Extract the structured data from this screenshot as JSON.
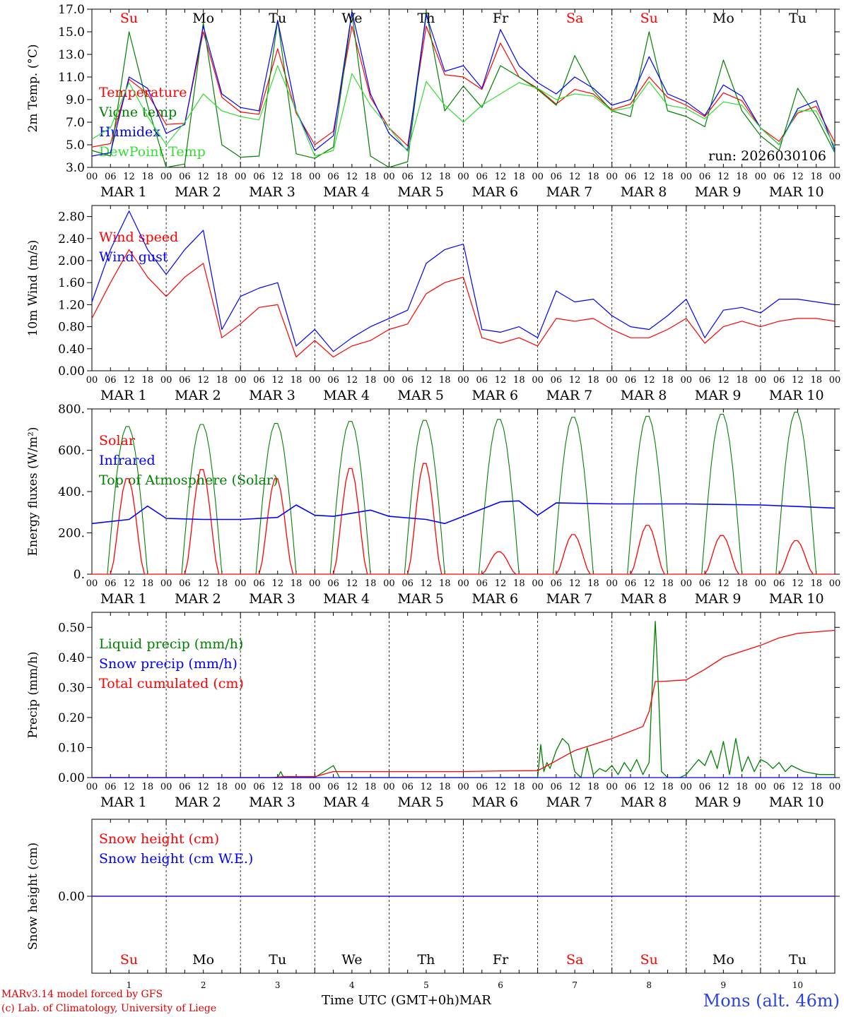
{
  "footer": {
    "model_line": "MARv3.14 model forced by GFS",
    "credit_line": "(c) Lab. of Climatology, University of Liege",
    "time_label": "Time UTC (GMT+0h)",
    "month": "MAR",
    "station": "Mons (alt. 46m)"
  },
  "days": {
    "names": [
      "Su",
      "Mo",
      "Tu",
      "We",
      "Th",
      "Fr",
      "Sa",
      "Su",
      "Mo",
      "Tu"
    ],
    "weekend_flags": [
      true,
      false,
      false,
      false,
      false,
      false,
      true,
      true,
      false,
      false
    ],
    "dates": [
      "MAR  1",
      "MAR  2",
      "MAR  3",
      "MAR  4",
      "MAR  5",
      "MAR  6",
      "MAR  7",
      "MAR  8",
      "MAR  9",
      "MAR 10"
    ],
    "bottom_numbers": [
      "1",
      "2",
      "3",
      "4",
      "5",
      "6",
      "7",
      "8",
      "9",
      "10"
    ],
    "hour_ticks": [
      "00",
      "06",
      "12",
      "18"
    ],
    "final_tick": "00"
  },
  "colors": {
    "red": "#ff0000",
    "green": "#008000",
    "blue": "#0000ff",
    "lightgreen": "#33dd33",
    "weekend": "#ff0000",
    "title_blue": "#2b43e0"
  },
  "chart_data": [
    {
      "type": "line",
      "ylabel": "2m Temp. (°C)",
      "ylim": [
        3.0,
        17.0
      ],
      "yticks": [
        "3.0",
        "5.0",
        "7.0",
        "9.0",
        "11.0",
        "13.0",
        "15.0",
        "17.0"
      ],
      "annotation": "run: 2026030106",
      "x_hours": [
        0,
        6,
        12,
        18,
        24,
        30,
        36,
        42,
        48,
        54,
        60,
        66,
        72,
        78,
        84,
        90,
        96,
        102,
        108,
        114,
        120,
        126,
        132,
        138,
        144,
        150,
        156,
        162,
        168,
        174,
        180,
        186,
        192,
        198,
        204,
        210,
        216,
        222,
        228,
        234,
        240
      ],
      "series": [
        {
          "name": "Temperature",
          "color": "red",
          "values": [
            4.8,
            5.1,
            10.8,
            9.5,
            6.8,
            6.9,
            15.0,
            9.2,
            7.9,
            7.7,
            13.5,
            7.8,
            5.0,
            6.2,
            15.5,
            9.2,
            6.5,
            4.9,
            15.5,
            11.2,
            11.0,
            9.9,
            14.0,
            11.0,
            10.0,
            8.6,
            9.9,
            9.5,
            8.1,
            8.6,
            11.0,
            9.2,
            8.5,
            7.5,
            9.6,
            8.9,
            6.5,
            5.3,
            7.8,
            8.4,
            5.2
          ]
        },
        {
          "name": "Vigne temp",
          "color": "green",
          "values": [
            4.5,
            4.0,
            15.0,
            8.5,
            3.0,
            3.3,
            15.8,
            5.0,
            3.9,
            4.0,
            16.0,
            4.2,
            3.8,
            4.8,
            16.7,
            4.0,
            3.0,
            3.5,
            16.8,
            8.0,
            10.2,
            8.3,
            12.0,
            11.0,
            9.9,
            8.5,
            12.9,
            9.8,
            8.0,
            7.5,
            15.0,
            8.0,
            7.5,
            6.6,
            12.5,
            8.0,
            5.8,
            4.5,
            10.0,
            7.5,
            4.3
          ]
        },
        {
          "name": "Humidex",
          "color": "blue",
          "values": [
            4.0,
            4.3,
            11.0,
            10.0,
            6.0,
            6.8,
            15.5,
            9.5,
            8.3,
            8.0,
            16.0,
            8.0,
            4.5,
            5.8,
            16.8,
            9.5,
            6.0,
            4.5,
            16.5,
            11.5,
            12.0,
            10.0,
            15.2,
            12.0,
            10.5,
            9.5,
            11.0,
            10.0,
            8.5,
            9.0,
            12.8,
            9.5,
            8.8,
            7.6,
            10.3,
            9.3,
            6.5,
            5.0,
            8.2,
            8.9,
            4.5
          ]
        },
        {
          "name": "DewPoint Temp",
          "color": "lightgreen",
          "values": [
            5.5,
            6.5,
            10.5,
            7.5,
            5.0,
            7.0,
            9.5,
            8.0,
            7.5,
            7.2,
            12.0,
            8.0,
            4.0,
            4.5,
            11.3,
            8.5,
            6.5,
            4.4,
            10.6,
            8.5,
            7.0,
            8.5,
            9.5,
            10.5,
            10.0,
            9.0,
            9.5,
            9.3,
            8.0,
            8.3,
            10.6,
            8.5,
            8.2,
            7.3,
            8.8,
            8.5,
            6.5,
            5.0,
            8.0,
            8.0,
            4.8
          ]
        }
      ]
    },
    {
      "type": "line",
      "ylabel": "10m Wind (m/s)",
      "ylim": [
        0.0,
        3.0
      ],
      "yticks": [
        "0.00",
        "0.40",
        "0.80",
        "1.20",
        "1.60",
        "2.00",
        "2.40",
        "2.80"
      ],
      "x_hours": [
        0,
        6,
        12,
        18,
        24,
        30,
        36,
        42,
        48,
        54,
        60,
        66,
        72,
        78,
        84,
        90,
        96,
        102,
        108,
        114,
        120,
        126,
        132,
        138,
        144,
        150,
        156,
        162,
        168,
        174,
        180,
        186,
        192,
        198,
        204,
        210,
        216,
        222,
        228,
        234,
        240
      ],
      "series": [
        {
          "name": "Wind speed",
          "color": "red",
          "values": [
            0.95,
            1.6,
            2.2,
            1.7,
            1.35,
            1.7,
            1.95,
            0.6,
            0.85,
            1.15,
            1.2,
            0.25,
            0.55,
            0.25,
            0.45,
            0.55,
            0.75,
            0.85,
            1.4,
            1.6,
            1.7,
            0.6,
            0.5,
            0.6,
            0.45,
            0.95,
            0.9,
            0.95,
            0.75,
            0.6,
            0.6,
            0.75,
            0.95,
            0.5,
            0.8,
            0.9,
            0.8,
            0.9,
            0.95,
            0.95,
            0.9
          ]
        },
        {
          "name": "Wind gust",
          "color": "blue",
          "values": [
            1.25,
            2.2,
            2.9,
            2.2,
            1.75,
            2.2,
            2.55,
            0.75,
            1.35,
            1.5,
            1.6,
            0.45,
            0.75,
            0.35,
            0.6,
            0.8,
            0.95,
            1.1,
            1.95,
            2.2,
            2.3,
            0.75,
            0.7,
            0.8,
            0.6,
            1.45,
            1.25,
            1.3,
            1.0,
            0.8,
            0.75,
            1.0,
            1.3,
            0.6,
            1.1,
            1.15,
            1.05,
            1.3,
            1.3,
            1.25,
            1.2
          ]
        }
      ]
    },
    {
      "type": "line",
      "ylabel": "Energy fluxes (W/m²)",
      "ylim": [
        0,
        800
      ],
      "yticks": [
        "0.",
        "200.",
        "400.",
        "600.",
        "800."
      ],
      "toa_peaks": [
        720,
        730,
        735,
        745,
        750,
        755,
        765,
        770,
        780,
        790
      ],
      "solar_peaks": [
        470,
        515,
        470,
        520,
        545,
        110,
        195,
        240,
        190,
        165
      ],
      "infrared": {
        "x_hours": [
          0,
          12,
          18,
          24,
          36,
          48,
          60,
          66,
          72,
          78,
          90,
          96,
          108,
          114,
          120,
          132,
          138,
          144,
          150,
          168,
          192,
          216,
          240
        ],
        "values": [
          245,
          265,
          330,
          270,
          265,
          265,
          275,
          335,
          285,
          280,
          310,
          280,
          265,
          245,
          280,
          350,
          355,
          285,
          345,
          340,
          340,
          335,
          320
        ]
      },
      "series": [
        {
          "name": "Solar",
          "color": "red"
        },
        {
          "name": "Infrared",
          "color": "blue"
        },
        {
          "name": "Top of Atmosphere (Solar)",
          "color": "green"
        }
      ]
    },
    {
      "type": "line",
      "ylabel": "Precip (mm/h)",
      "ylim": [
        0.0,
        0.55
      ],
      "yticks": [
        "0.00",
        "0.10",
        "0.20",
        "0.30",
        "0.40",
        "0.50"
      ],
      "series": [
        {
          "name": "Liquid precip (mm/h)",
          "color": "green",
          "x_hours": [
            0,
            60,
            61,
            62,
            72,
            78,
            79,
            80,
            84,
            144,
            145,
            146,
            147,
            148,
            150,
            152,
            154,
            156,
            158,
            160,
            162,
            164,
            166,
            168,
            170,
            172,
            174,
            176,
            178,
            180,
            181,
            182,
            183,
            184,
            186,
            190,
            192,
            196,
            198,
            200,
            202,
            204,
            206,
            208,
            210,
            212,
            214,
            216,
            218,
            220,
            222,
            224,
            226,
            230,
            235,
            240
          ],
          "values": [
            0,
            0,
            0.02,
            0,
            0,
            0.04,
            0.02,
            0,
            0,
            0,
            0.11,
            0.02,
            0.05,
            0.03,
            0.09,
            0.13,
            0.11,
            0.02,
            0,
            0.1,
            0.01,
            0.03,
            0.02,
            0.04,
            0.01,
            0.05,
            0.02,
            0.06,
            0.01,
            0.05,
            0.3,
            0.52,
            0.3,
            0.02,
            0,
            0,
            0.01,
            0.06,
            0.04,
            0.09,
            0.03,
            0.12,
            0.01,
            0.13,
            0.02,
            0.07,
            0.02,
            0.06,
            0.05,
            0.03,
            0.05,
            0.02,
            0.04,
            0.02,
            0.01,
            0.01
          ]
        },
        {
          "name": "Snow precip (mm/h)",
          "color": "blue",
          "x_hours": [
            0,
            240
          ],
          "values": [
            0,
            0
          ]
        },
        {
          "name": "Total cumulated (cm)",
          "color": "red",
          "x_hours": [
            0,
            58,
            62,
            72,
            78,
            84,
            96,
            120,
            132,
            144,
            148,
            156,
            168,
            178,
            180,
            182,
            184,
            192,
            198,
            204,
            210,
            216,
            222,
            228,
            240
          ],
          "values": [
            0,
            0,
            0.003,
            0.003,
            0.02,
            0.02,
            0.02,
            0.02,
            0.022,
            0.023,
            0.045,
            0.09,
            0.13,
            0.17,
            0.22,
            0.32,
            0.32,
            0.325,
            0.36,
            0.4,
            0.42,
            0.44,
            0.465,
            0.48,
            0.49
          ]
        }
      ]
    },
    {
      "type": "line",
      "ylabel": "Snow height (cm)",
      "ylim": [
        -1,
        1
      ],
      "yticks": [
        "0.00"
      ],
      "series": [
        {
          "name": "Snow height (cm)",
          "color": "red",
          "x_hours": [
            0,
            240
          ],
          "values": [
            0,
            0
          ]
        },
        {
          "name": "Snow height (cm W.E.)",
          "color": "blue",
          "x_hours": [
            0,
            240
          ],
          "values": [
            0,
            0
          ]
        }
      ]
    }
  ]
}
